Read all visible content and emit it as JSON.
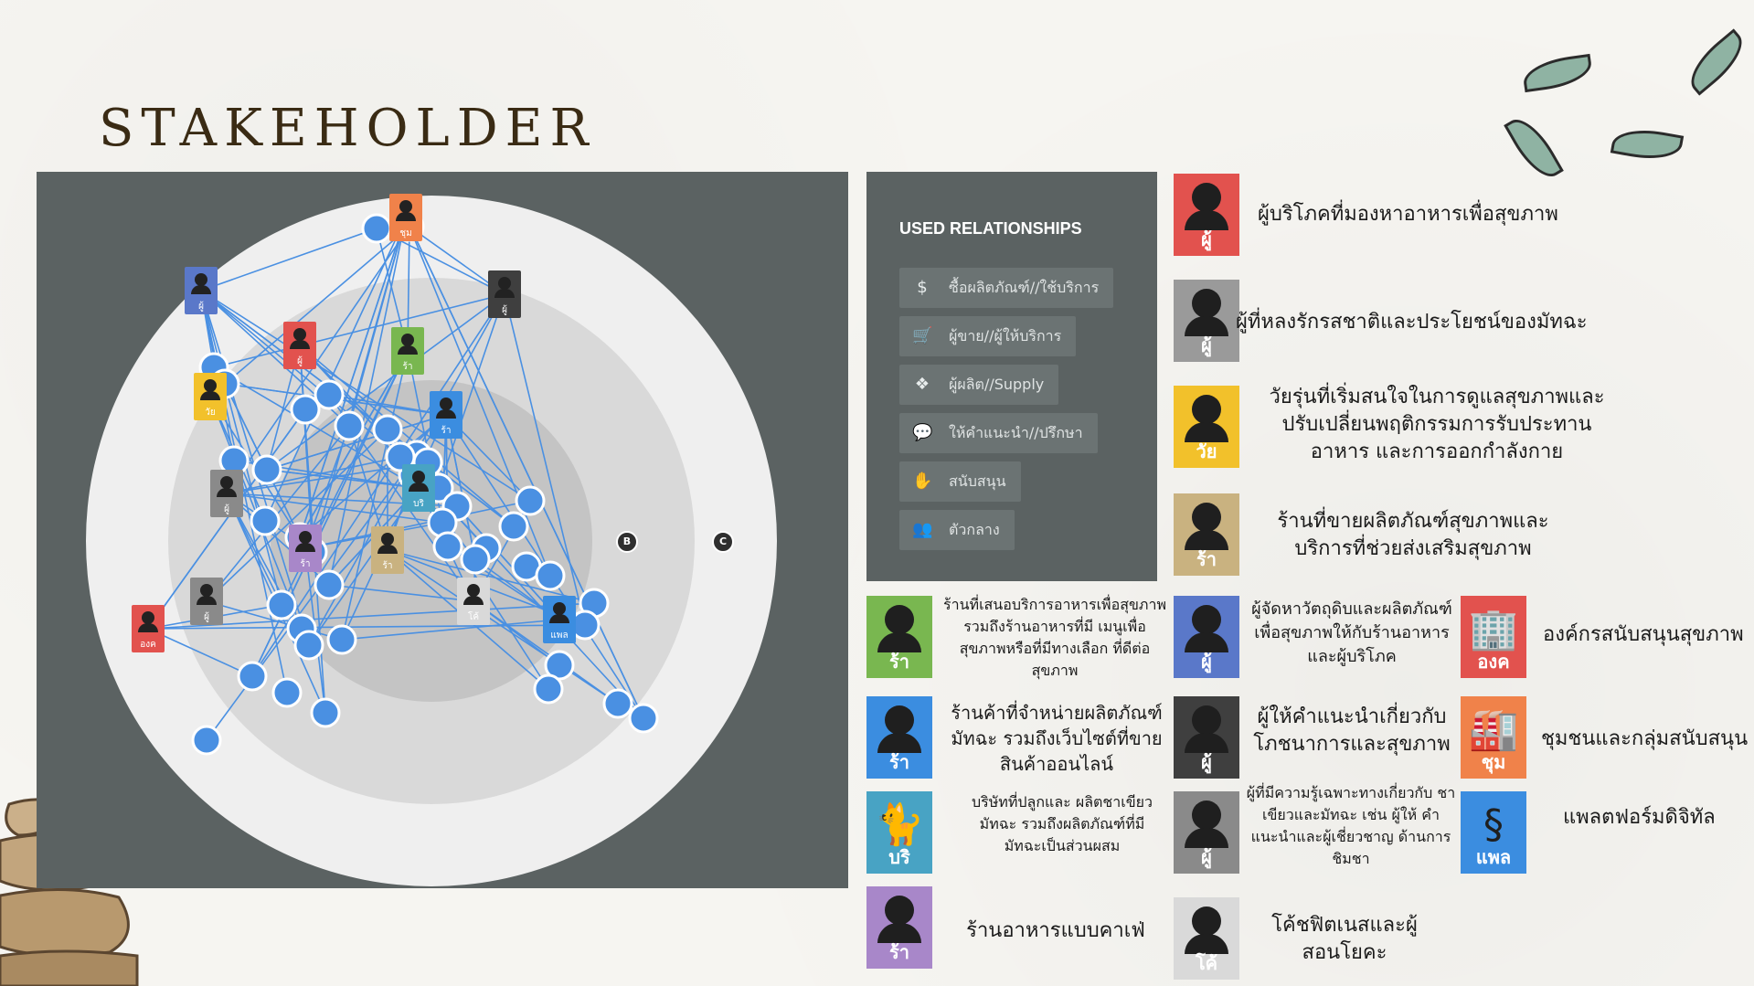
{
  "title": "STAKEHOLDER",
  "colors": {
    "panel": "#5b6262",
    "line": "#4a90e2",
    "outer_ring": "#efefef",
    "middle_ring": "#d9d9d9",
    "inner_ring": "#c4c4c4"
  },
  "map": {
    "markers": [
      "B",
      "C"
    ],
    "pins": [
      {
        "label": "ชุม",
        "color": "#f0824a",
        "icon": "factory-icon"
      },
      {
        "label": "ผู้",
        "color": "#5a78c9",
        "icon": "person-icon"
      },
      {
        "label": "ผู้",
        "color": "#3f3f3f",
        "icon": "person-icon"
      },
      {
        "label": "ผู้",
        "color": "#e2524e",
        "icon": "person-icon"
      },
      {
        "label": "ร้า",
        "color": "#79b750",
        "icon": "person-icon"
      },
      {
        "label": "วัย",
        "color": "#f2c12b",
        "icon": "person-icon"
      },
      {
        "label": "ร้า",
        "color": "#3b8de0",
        "icon": "person-icon"
      },
      {
        "label": "บริ",
        "color": "#48a3c4",
        "icon": "cat-icon"
      },
      {
        "label": "ผู้",
        "color": "#8a8a8a",
        "icon": "person-icon"
      },
      {
        "label": "ร้า",
        "color": "#a887c9",
        "icon": "person-icon"
      },
      {
        "label": "ร้า",
        "color": "#c9b280",
        "icon": "person-icon"
      },
      {
        "label": "องค",
        "color": "#e2524e",
        "icon": "building-icon"
      },
      {
        "label": "ผู้",
        "color": "#8a8a8a",
        "icon": "person-icon"
      },
      {
        "label": "โค้",
        "color": "#d9d9d9",
        "icon": "person-icon"
      },
      {
        "label": "แพล",
        "color": "#3b8de0",
        "icon": "section-icon"
      }
    ]
  },
  "relationships": {
    "heading": "USED RELATIONSHIPS",
    "items": [
      {
        "label": "ซื้อผลิตภัณฑ์//ใช้บริการ",
        "icon": "money-bag-icon"
      },
      {
        "label": "ผู้ขาย//ผู้ให้บริการ",
        "icon": "cart-icon"
      },
      {
        "label": "ผู้ผลิต//Supply",
        "icon": "dropbox-icon"
      },
      {
        "label": "ให้คำแนะนำ//ปรึกษา",
        "icon": "chat-icon"
      },
      {
        "label": "สนับสนุน",
        "icon": "support-icon"
      },
      {
        "label": "ตัวกลาง",
        "icon": "users-icon"
      }
    ]
  },
  "legend": [
    {
      "label": "ผู้",
      "color": "#e2524e",
      "icon": "person-icon",
      "text": "ผู้บริโภคที่มองหาอาหารเพื่อสุขภาพ"
    },
    {
      "label": "ผู้",
      "color": "#9a9a9a",
      "icon": "person-icon",
      "text": "ผู้ที่หลงรักรสชาติและประโยชน์ของมัทฉะ"
    },
    {
      "label": "วัย",
      "color": "#f2c12b",
      "icon": "person-icon",
      "text": "วัยรุ่นที่เริ่มสนใจในการดูแลสุขภาพและ ปรับเปลี่ยนพฤติกรรมการรับประทานอาหาร และการออกกำลังกาย"
    },
    {
      "label": "ร้า",
      "color": "#c9b280",
      "icon": "person-icon",
      "text": "ร้านที่ขายผลิตภัณฑ์สุขภาพและ บริการที่ช่วยส่งเสริมสุขภาพ"
    },
    {
      "label": "ร้า",
      "color": "#79b750",
      "icon": "person-icon",
      "text": "ร้านที่เสนอบริการอาหารเพื่อสุขภาพ รวมถึงร้านอาหารที่มี เมนูเพื่อสุขภาพหรือที่มีทางเลือก ที่ดีต่อสุขภาพ"
    },
    {
      "label": "ผู้",
      "color": "#5a78c9",
      "icon": "person-icon",
      "text": "ผู้จัดหาวัตถุดิบและผลิตภัณฑ์ เพื่อสุขภาพให้กับร้านอาหาร และผู้บริโภค"
    },
    {
      "label": "องค",
      "color": "#e2524e",
      "icon": "building-icon",
      "text": "องค์กรสนับสนุนสุขภาพ"
    },
    {
      "label": "ร้า",
      "color": "#3b8de0",
      "icon": "person-icon",
      "text": "ร้านค้าที่จำหน่ายผลิตภัณฑ์มัทฉะ รวมถึงเว็บไซต์ที่ขาย สินค้าออนไลน์"
    },
    {
      "label": "ผู้",
      "color": "#3f3f3f",
      "icon": "person-icon",
      "text": "ผู้ให้คำแนะนำเกี่ยวกับ โภชนาการและสุขภาพ"
    },
    {
      "label": "ชุม",
      "color": "#f0824a",
      "icon": "factory-icon",
      "text": "ชุมชนและกลุ่มสนับสนุน"
    },
    {
      "label": "บริ",
      "color": "#48a3c4",
      "icon": "cat-icon",
      "text": "บริษัทที่ปลูกและ ผลิตชาเขียวมัทฉะ รวมถึงผลิตภัณฑ์ที่มี มัทฉะเป็นส่วนผสม"
    },
    {
      "label": "ผู้",
      "color": "#8a8a8a",
      "icon": "person-icon",
      "text": "ผู้ที่มีความรู้เฉพาะทางเกี่ยวกับ ชาเขียวและมัทฉะ เช่น ผู้ให้ คำแนะนำและผู้เชี่ยวชาญ ด้านการชิมชา"
    },
    {
      "label": "แพล",
      "color": "#3b8de0",
      "icon": "section-icon",
      "text": "แพลตฟอร์มดิจิทัล"
    },
    {
      "label": "ร้า",
      "color": "#a887c9",
      "icon": "person-icon",
      "text": "ร้านอาหารแบบคาเฟ่"
    },
    {
      "label": "โค้",
      "color": "#d9d9d9",
      "icon": "person-icon",
      "text": "โค้ชฟิตเนสและผู้ สอนโยคะ"
    }
  ]
}
